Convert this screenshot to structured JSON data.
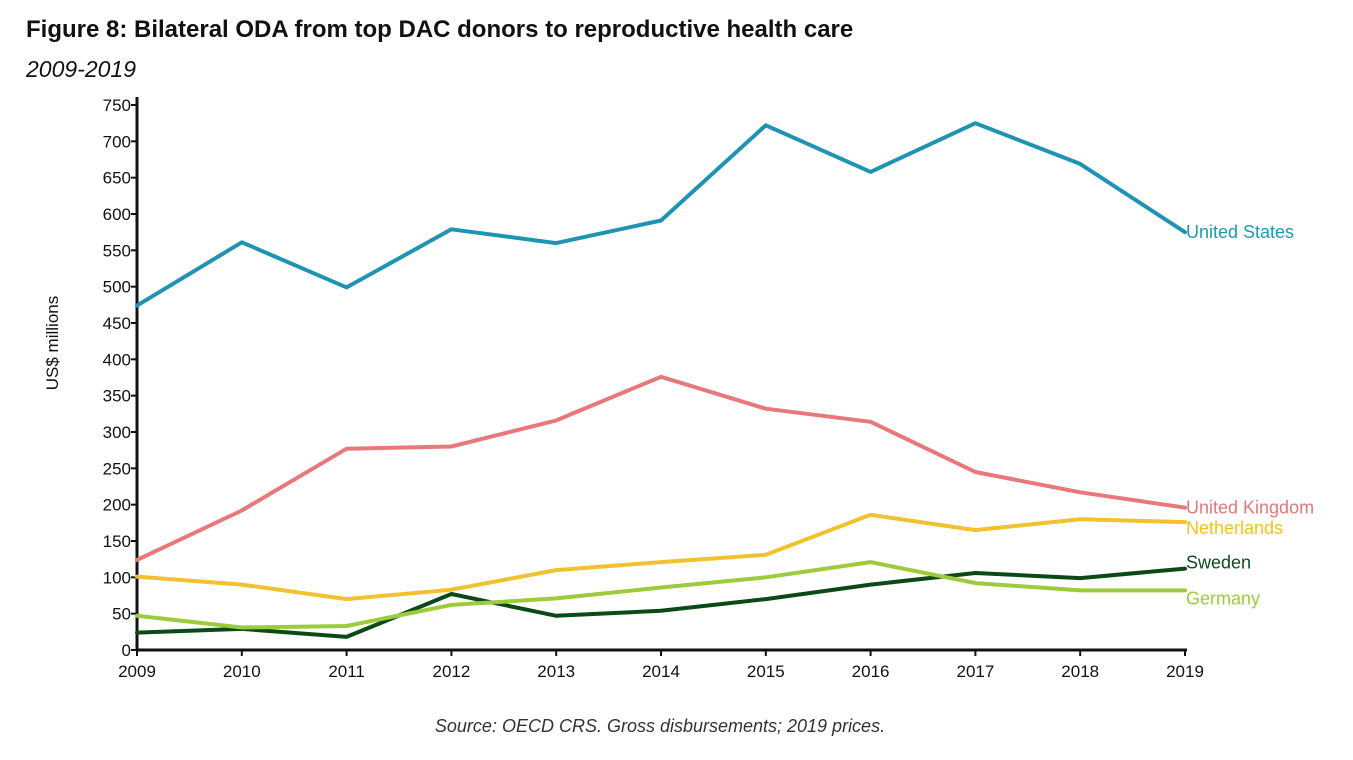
{
  "title": "Figure 8: Bilateral ODA from top DAC donors to reproductive health care",
  "subtitle": "2009-2019",
  "source": "Source: OECD CRS. Gross disbursements; 2019 prices.",
  "chart_data": {
    "type": "line",
    "title": "Figure 8: Bilateral ODA from top DAC donors to reproductive health care",
    "subtitle": "2009-2019",
    "xlabel": "",
    "ylabel": "US$ millions",
    "ylim": [
      0,
      750
    ],
    "yticks": [
      0,
      50,
      100,
      150,
      200,
      250,
      300,
      350,
      400,
      450,
      500,
      550,
      600,
      650,
      700,
      750
    ],
    "x": [
      "2009",
      "2010",
      "2011",
      "2012",
      "2013",
      "2014",
      "2015",
      "2016",
      "2017",
      "2018",
      "2019"
    ],
    "grid": false,
    "legend": "labels at right end of lines",
    "series": [
      {
        "name": "United States",
        "color": "#1f93b3",
        "label_color": "#1a9bb0",
        "values": [
          474,
          561,
          499,
          579,
          560,
          591,
          722,
          658,
          725,
          669,
          575
        ]
      },
      {
        "name": "United Kingdom",
        "color": "#e8787a",
        "label_color": "#e0787a",
        "values": [
          124,
          192,
          277,
          280,
          316,
          376,
          332,
          314,
          245,
          217,
          196
        ]
      },
      {
        "name": "Netherlands",
        "color": "#f2c12e",
        "label_color": "#f0c419",
        "values": [
          101,
          90,
          70,
          83,
          110,
          121,
          131,
          186,
          165,
          180,
          176
        ]
      },
      {
        "name": "Sweden",
        "color": "#0b4a16",
        "label_color": "#0f4a1e",
        "values": [
          24,
          29,
          18,
          77,
          47,
          54,
          70,
          90,
          106,
          99,
          112
        ]
      },
      {
        "name": "Germany",
        "color": "#9ccb3b",
        "label_color": "#9ccb3b",
        "values": [
          47,
          31,
          33,
          62,
          71,
          86,
          100,
          121,
          92,
          82,
          82
        ]
      }
    ]
  }
}
